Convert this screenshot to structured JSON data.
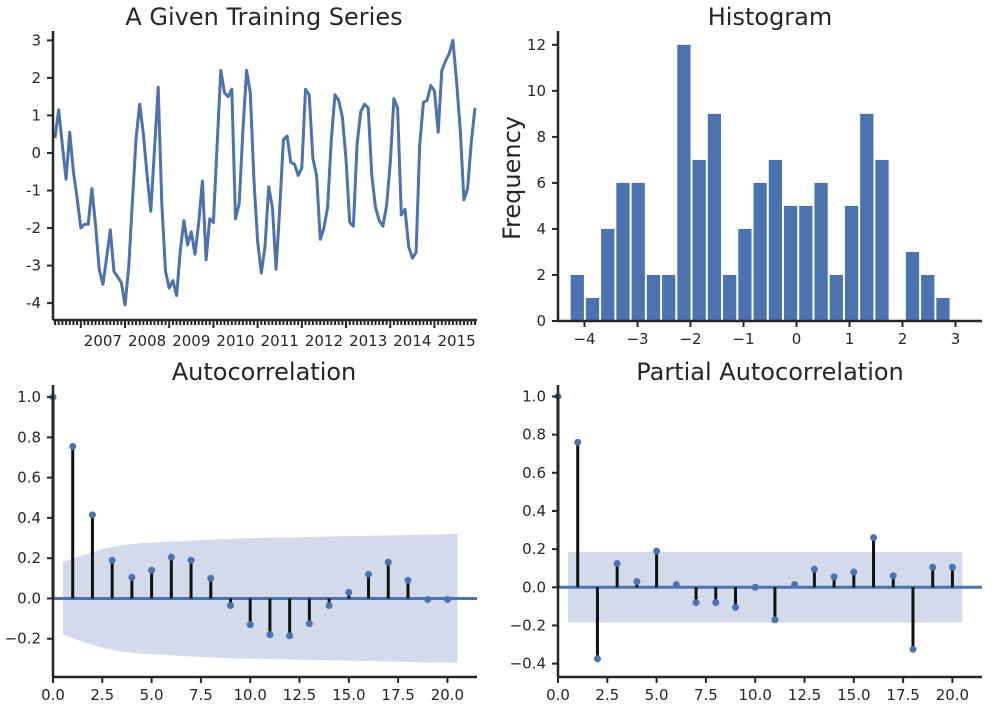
{
  "chart_data": [
    {
      "type": "line",
      "title": "A Given Training Series",
      "xlabel": "",
      "ylabel": "",
      "ylim": [
        -4.45,
        3.25
      ],
      "yticks": [
        -4,
        -3,
        -2,
        -1,
        0,
        1,
        2,
        3
      ],
      "xticklabels": [
        "2007",
        "2008",
        "2009",
        "2010",
        "2011",
        "2012",
        "2013",
        "2014",
        "2015"
      ],
      "x": [
        "2006-06",
        "2006-07",
        "2006-08",
        "2006-09",
        "2006-10",
        "2006-11",
        "2006-12",
        "2007-01",
        "2007-02",
        "2007-03",
        "2007-04",
        "2007-05",
        "2007-06",
        "2007-07",
        "2007-08",
        "2007-09",
        "2007-10",
        "2007-11",
        "2007-12",
        "2008-01",
        "2008-02",
        "2008-03",
        "2008-04",
        "2008-05",
        "2008-06",
        "2008-07",
        "2008-08",
        "2008-09",
        "2008-10",
        "2008-11",
        "2008-12",
        "2009-01",
        "2009-02",
        "2009-03",
        "2009-04",
        "2009-05",
        "2009-06",
        "2009-07",
        "2009-08",
        "2009-09",
        "2009-10",
        "2009-11",
        "2009-12",
        "2010-01",
        "2010-02",
        "2010-03",
        "2010-04",
        "2010-05",
        "2010-06",
        "2010-07",
        "2010-08",
        "2010-09",
        "2010-10",
        "2010-11",
        "2010-12",
        "2011-01",
        "2011-02",
        "2011-03",
        "2011-04",
        "2011-05",
        "2011-06",
        "2011-07",
        "2011-08",
        "2011-09",
        "2011-10",
        "2011-11",
        "2011-12",
        "2012-01",
        "2012-02",
        "2012-03",
        "2012-04",
        "2012-05",
        "2012-06",
        "2012-07",
        "2012-08",
        "2012-09",
        "2012-10",
        "2012-11",
        "2012-12",
        "2013-01",
        "2013-02",
        "2013-03",
        "2013-04",
        "2013-05",
        "2013-06",
        "2013-07",
        "2013-08",
        "2013-09",
        "2013-10",
        "2013-11",
        "2013-12",
        "2014-01",
        "2014-02",
        "2014-03",
        "2014-04",
        "2014-05",
        "2014-06",
        "2014-07",
        "2014-08",
        "2014-09",
        "2014-10",
        "2014-11",
        "2014-12",
        "2015-01",
        "2015-02",
        "2015-03",
        "2015-04",
        "2015-05",
        "2015-06",
        "2015-07",
        "2015-08",
        "2015-09",
        "2015-10",
        "2015-11",
        "2015-12"
      ],
      "values": [
        0.4,
        1.15,
        0.2,
        -0.7,
        0.55,
        -0.5,
        -1.2,
        -2.0,
        -1.9,
        -1.9,
        -0.95,
        -1.9,
        -3.1,
        -3.5,
        -2.8,
        -2.05,
        -3.15,
        -3.3,
        -3.45,
        -4.05,
        -3.05,
        -1.3,
        0.4,
        1.3,
        0.5,
        -0.6,
        -1.55,
        0.1,
        1.75,
        -1.35,
        -3.15,
        -3.6,
        -3.4,
        -3.8,
        -2.6,
        -1.8,
        -2.45,
        -2.1,
        -2.7,
        -1.85,
        -0.75,
        -2.85,
        -1.75,
        -1.85,
        0.2,
        2.2,
        1.6,
        1.5,
        1.7,
        -1.75,
        -1.35,
        0.6,
        2.2,
        1.6,
        -0.7,
        -2.35,
        -3.2,
        -2.5,
        -0.9,
        -1.45,
        -3.1,
        -1.5,
        0.35,
        0.45,
        -0.25,
        -0.3,
        -0.6,
        -0.4,
        1.7,
        1.55,
        -0.15,
        -0.6,
        -2.3,
        -2.0,
        -1.45,
        0.35,
        1.55,
        1.4,
        0.95,
        -0.2,
        -1.85,
        -1.95,
        0.25,
        1.1,
        1.3,
        1.2,
        -0.6,
        -1.45,
        -1.8,
        -1.95,
        -1.4,
        -0.25,
        1.45,
        1.2,
        -1.65,
        -1.5,
        -2.5,
        -2.8,
        -2.65,
        0.2,
        1.35,
        1.4,
        1.8,
        1.65,
        0.55,
        2.2,
        2.45,
        2.65,
        3.0,
        1.9,
        0.6,
        -1.25,
        -0.95,
        0.3,
        1.2
      ]
    },
    {
      "type": "bar",
      "title": "Histogram",
      "xlabel": "",
      "ylabel": "Frequency",
      "xlim": [
        -4.5,
        3.5
      ],
      "ylim": [
        0,
        12.6
      ],
      "xticks": [
        -4,
        -3,
        -2,
        -1,
        0,
        1,
        2,
        3
      ],
      "xticklabels": [
        "−4",
        "−3",
        "−2",
        "−1",
        "0",
        "1",
        "2",
        "3"
      ],
      "yticks": [
        0,
        2,
        4,
        6,
        8,
        10,
        12
      ],
      "bin_start": -4.28,
      "bin_width": 0.2875,
      "values": [
        2,
        1,
        4,
        6,
        6,
        2,
        2,
        12,
        7,
        9,
        2,
        4,
        6,
        7,
        5,
        5,
        6,
        2,
        5,
        9,
        7,
        0,
        3,
        2,
        1
      ]
    },
    {
      "type": "stem",
      "title": "Autocorrelation",
      "xlabel": "",
      "ylabel": "",
      "xlim": [
        0,
        21.5
      ],
      "ylim": [
        -0.39,
        1.06
      ],
      "xticks": [
        0,
        2.5,
        5,
        7.5,
        10,
        12.5,
        15,
        17.5,
        20
      ],
      "xticklabels": [
        "0.0",
        "2.5",
        "5.0",
        "7.5",
        "10.0",
        "12.5",
        "15.0",
        "17.5",
        "20.0"
      ],
      "yticks": [
        -0.2,
        0,
        0.2,
        0.4,
        0.6,
        0.8,
        1.0
      ],
      "yticklabels": [
        "−0.2",
        "0.0",
        "0.2",
        "0.4",
        "0.6",
        "0.8",
        "1.0"
      ],
      "lags": [
        0,
        1,
        2,
        3,
        4,
        5,
        6,
        7,
        8,
        9,
        10,
        11,
        12,
        13,
        14,
        15,
        16,
        17,
        18,
        19,
        20
      ],
      "values": [
        1.0,
        0.755,
        0.415,
        0.19,
        0.105,
        0.14,
        0.205,
        0.19,
        0.1,
        -0.035,
        -0.13,
        -0.18,
        -0.185,
        -0.125,
        -0.035,
        0.03,
        0.12,
        0.18,
        0.09,
        -0.005,
        -0.005
      ],
      "confidence_band": [
        0.18,
        0.215,
        0.245,
        0.265,
        0.275,
        0.28,
        0.285,
        0.29,
        0.295,
        0.298,
        0.3,
        0.302,
        0.304,
        0.306,
        0.308,
        0.31,
        0.312,
        0.314,
        0.316,
        0.318,
        0.32
      ]
    },
    {
      "type": "stem",
      "title": "Partial Autocorrelation",
      "xlabel": "",
      "ylabel": "",
      "xlim": [
        0,
        21.5
      ],
      "ylim": [
        -0.47,
        1.06
      ],
      "xticks": [
        0,
        2.5,
        5,
        7.5,
        10,
        12.5,
        15,
        17.5,
        20
      ],
      "xticklabels": [
        "0.0",
        "2.5",
        "5.0",
        "7.5",
        "10.0",
        "12.5",
        "15.0",
        "17.5",
        "20.0"
      ],
      "yticks": [
        -0.4,
        -0.2,
        0,
        0.2,
        0.4,
        0.6,
        0.8,
        1.0
      ],
      "yticklabels": [
        "−0.4",
        "−0.2",
        "0.0",
        "0.2",
        "0.4",
        "0.6",
        "0.8",
        "1.0"
      ],
      "lags": [
        0,
        1,
        2,
        3,
        4,
        5,
        6,
        7,
        8,
        9,
        10,
        11,
        12,
        13,
        14,
        15,
        16,
        17,
        18,
        19,
        20
      ],
      "values": [
        1.0,
        0.76,
        -0.375,
        0.125,
        0.03,
        0.19,
        0.015,
        -0.08,
        -0.08,
        -0.105,
        0.0,
        -0.17,
        0.015,
        0.095,
        0.055,
        0.08,
        0.26,
        0.06,
        -0.325,
        0.105,
        0.105
      ],
      "confidence_band": [
        0.185,
        0.185,
        0.185,
        0.185,
        0.185,
        0.185,
        0.185,
        0.185,
        0.185,
        0.185,
        0.185,
        0.185,
        0.185,
        0.185,
        0.185,
        0.185,
        0.185,
        0.185,
        0.185,
        0.185,
        0.185
      ]
    }
  ],
  "colors": {
    "line": "#4c72b0",
    "bar": "#4c72b0",
    "stem": "#111111",
    "marker": "#4c72b0",
    "band": "#d2daec",
    "axis": "#262626",
    "text": "#262626"
  }
}
